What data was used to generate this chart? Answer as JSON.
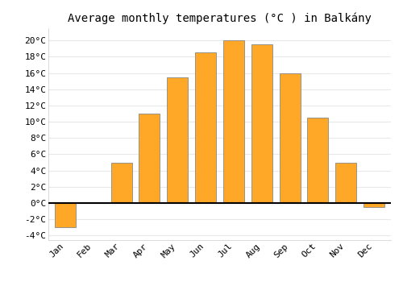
{
  "title": "Average monthly temperatures (°C ) in Balkány",
  "months": [
    "Jan",
    "Feb",
    "Mar",
    "Apr",
    "May",
    "Jun",
    "Jul",
    "Aug",
    "Sep",
    "Oct",
    "Nov",
    "Dec"
  ],
  "values": [
    -3.0,
    0.0,
    5.0,
    11.0,
    15.5,
    18.5,
    20.0,
    19.5,
    16.0,
    10.5,
    5.0,
    -0.5
  ],
  "bar_color_positive": "#FFA726",
  "bar_color_zero": "#888888",
  "edge_color": "#888888",
  "background_color": "#ffffff",
  "grid_color": "#e8e8e8",
  "ylim": [
    -4.5,
    21.5
  ],
  "yticks": [
    -4,
    -2,
    0,
    2,
    4,
    6,
    8,
    10,
    12,
    14,
    16,
    18,
    20
  ],
  "title_fontsize": 10,
  "tick_fontsize": 8,
  "figsize": [
    5.0,
    3.5
  ],
  "dpi": 100
}
